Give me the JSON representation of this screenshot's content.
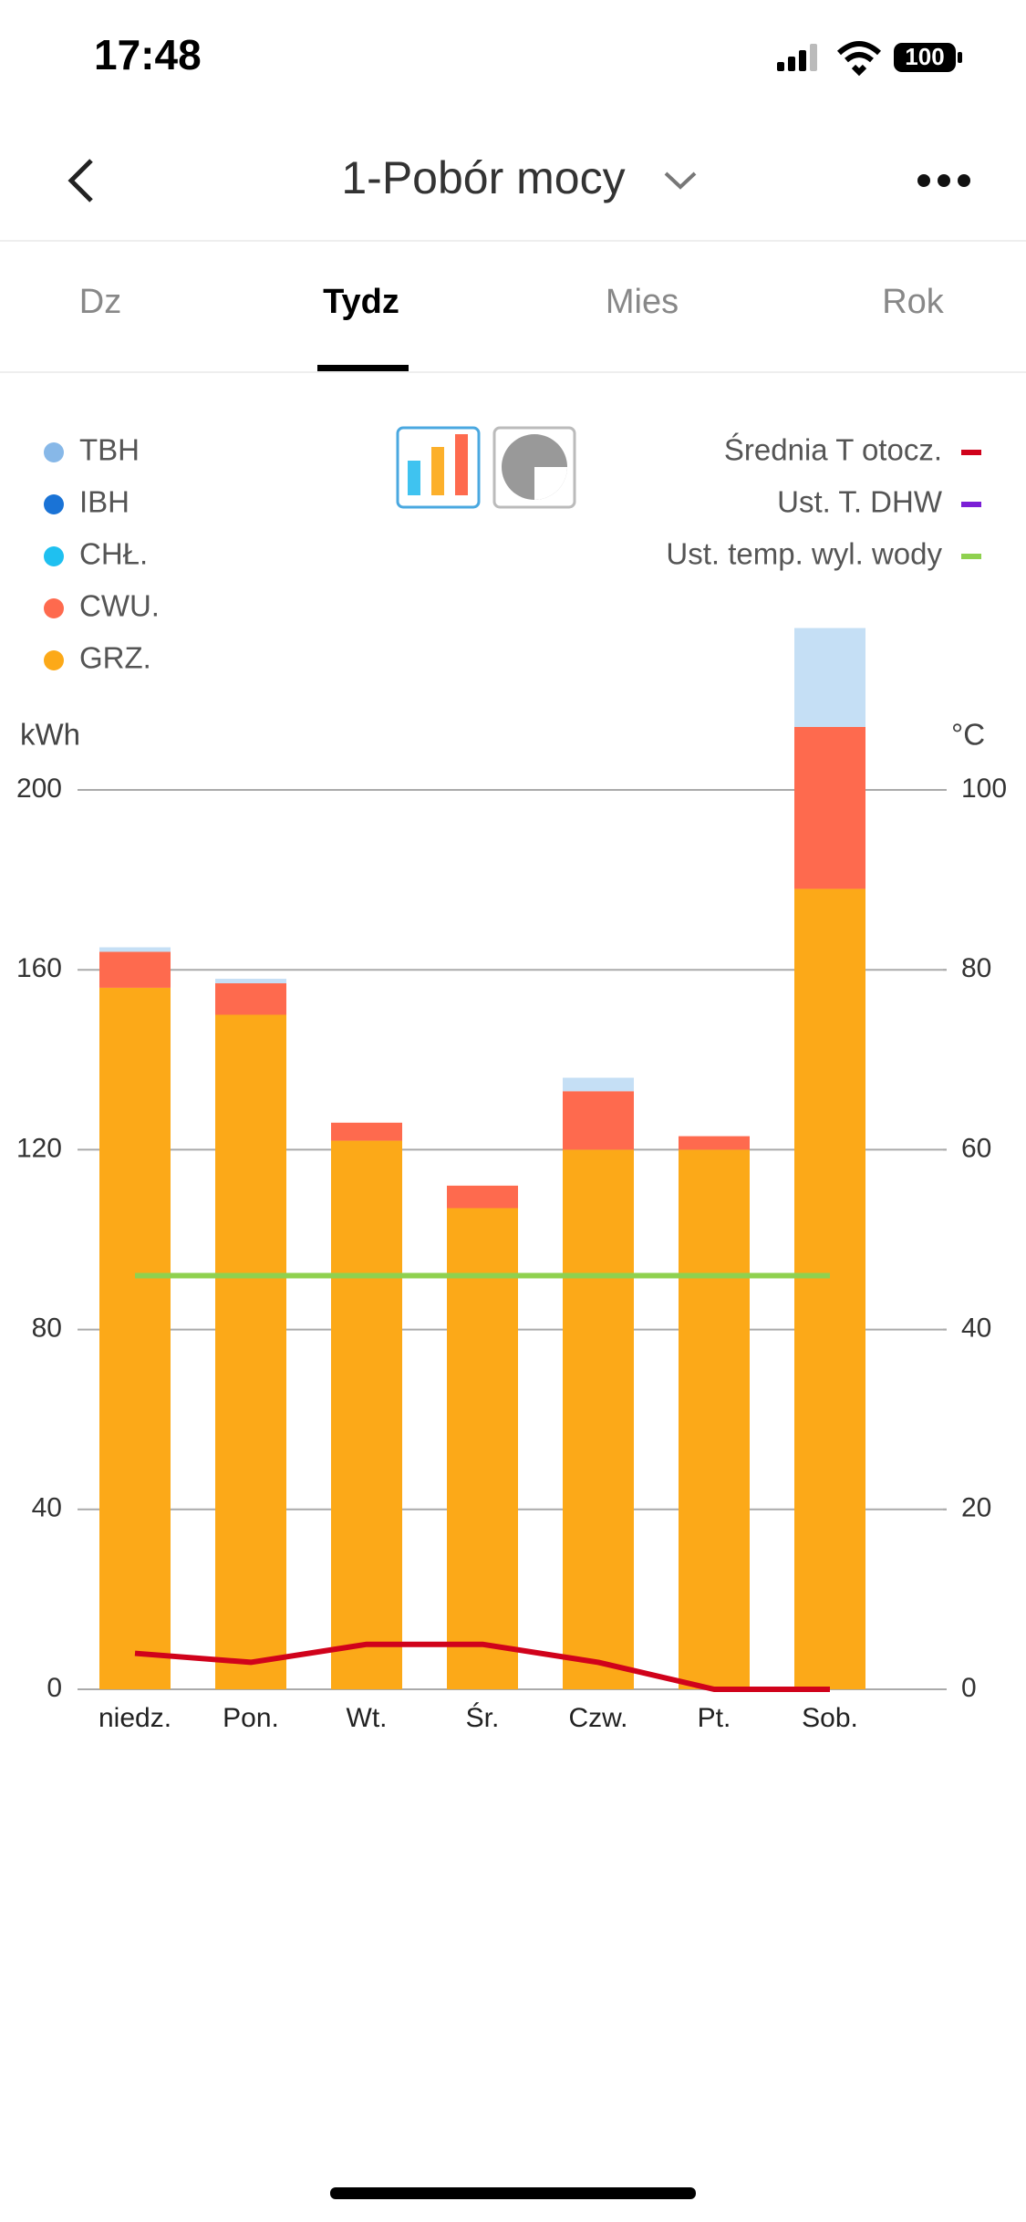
{
  "status": {
    "time": "17:48",
    "battery": "100"
  },
  "header": {
    "title": "1-Pobór mocy"
  },
  "tabs": [
    "Dz",
    "Tydz",
    "Mies",
    "Rok"
  ],
  "chart_data": {
    "type": "bar",
    "stacked": true,
    "categories": [
      "niedz.",
      "Pon.",
      "Wt.",
      "Śr.",
      "Czw.",
      "Pt.",
      "Sob."
    ],
    "ylabel": "kWh",
    "y2label": "°C",
    "ylim": [
      0,
      200
    ],
    "yticks": [
      0,
      40,
      80,
      120,
      160,
      200
    ],
    "y2lim": [
      0,
      100
    ],
    "y2ticks": [
      0,
      20,
      40,
      60,
      80,
      100
    ],
    "grid": true,
    "series": [
      {
        "name": "GRZ.",
        "color": "#fca918",
        "values": [
          156,
          150,
          122,
          107,
          120,
          120,
          178
        ]
      },
      {
        "name": "CWU.",
        "color": "#fe6a4e",
        "values": [
          8,
          7,
          4,
          5,
          13,
          3,
          36
        ]
      },
      {
        "name": "CHŁ.",
        "color": "#1fc0f0",
        "values": [
          0,
          0,
          0,
          0,
          0,
          0,
          0
        ]
      },
      {
        "name": "IBH",
        "color": "#1a73d6",
        "values": [
          0,
          0,
          0,
          0,
          0,
          0,
          0
        ]
      },
      {
        "name": "TBH",
        "color": "#c5dff5",
        "values": [
          1,
          1,
          0,
          0,
          3,
          0,
          22
        ]
      },
      {
        "name": "Średnia T otocz.",
        "type": "line",
        "axis": "y2",
        "color": "#d0021b",
        "values": [
          4,
          3,
          5,
          5,
          3,
          0,
          0
        ]
      },
      {
        "name": "Ust. T. DHW",
        "type": "line",
        "axis": "y2",
        "color": "#7b1fd6",
        "values": [
          null,
          null,
          null,
          null,
          null,
          null,
          null
        ]
      },
      {
        "name": "Ust. temp. wyl. wody",
        "type": "line",
        "axis": "y2",
        "color": "#8fd14f",
        "values": [
          46,
          46,
          46,
          46,
          46,
          46,
          46
        ]
      }
    ]
  }
}
